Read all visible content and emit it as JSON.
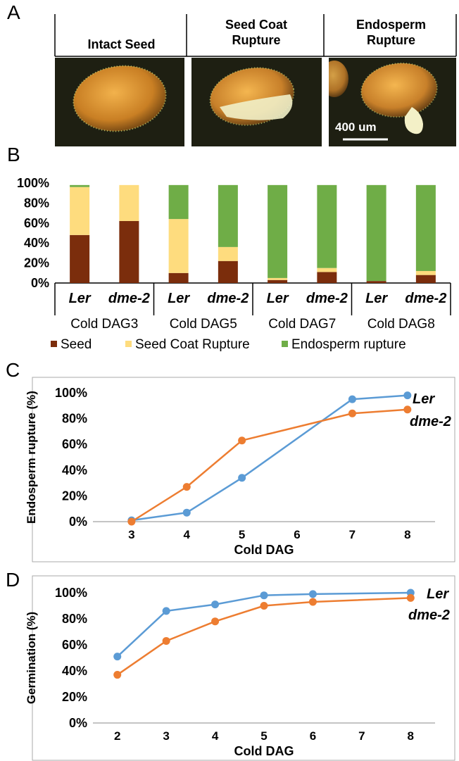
{
  "panels": {
    "a": "A",
    "b": "B",
    "c": "C",
    "d": "D"
  },
  "photos": {
    "labels": [
      [
        "Intact Seed"
      ],
      [
        "Seed Coat",
        "Rupture"
      ],
      [
        "Endosperm",
        "Rupture"
      ]
    ],
    "scale_bar": "400 um"
  },
  "chart_data": [
    {
      "type": "bar",
      "stacked": true,
      "categories": [
        "Ler",
        "dme-2",
        "Ler",
        "dme-2",
        "Ler",
        "dme-2",
        "Ler",
        "dme-2"
      ],
      "groups": [
        "Cold DAG3",
        "Cold DAG5",
        "Cold DAG7",
        "Cold DAG8"
      ],
      "series": [
        {
          "name": "Seed",
          "color": "#7b2d0c",
          "values": [
            48,
            62,
            10,
            22,
            3,
            11,
            2,
            8
          ]
        },
        {
          "name": "Seed Coat Rupture",
          "color": "#fedc7e",
          "values": [
            48,
            36,
            54,
            14,
            2,
            4,
            0,
            4
          ]
        },
        {
          "name": "Endosperm rupture",
          "color": "#6fad47",
          "values": [
            2,
            0,
            34,
            62,
            93,
            83,
            96,
            86
          ]
        }
      ],
      "ylim": [
        0,
        100
      ],
      "yticks": [
        "0%",
        "20%",
        "40%",
        "60%",
        "80%",
        "100%"
      ],
      "legend_position": "bottom"
    },
    {
      "type": "line",
      "ylabel": "Endosperm rupture (%)",
      "xlabel": "Cold DAG",
      "xticks": [
        "3",
        "4",
        "5",
        "6",
        "7",
        "8"
      ],
      "yticks": [
        "0%",
        "20%",
        "40%",
        "60%",
        "80%",
        "100%"
      ],
      "xlim": [
        2.3,
        8.5
      ],
      "ylim": [
        0,
        100
      ],
      "series": [
        {
          "name": "Ler",
          "color": "#5b9bd5",
          "x": [
            3,
            4,
            5,
            7,
            8
          ],
          "y": [
            1,
            7,
            34,
            95,
            98
          ]
        },
        {
          "name": "dme-2",
          "color": "#ed7d31",
          "x": [
            3,
            4,
            5,
            7,
            8
          ],
          "y": [
            0,
            27,
            63,
            84,
            87
          ]
        }
      ]
    },
    {
      "type": "line",
      "ylabel": "Germination (%)",
      "xlabel": "Cold DAG",
      "xticks": [
        "2",
        "3",
        "4",
        "5",
        "6",
        "7",
        "8"
      ],
      "yticks": [
        "0%",
        "20%",
        "40%",
        "60%",
        "80%",
        "100%"
      ],
      "xlim": [
        1.5,
        8.5
      ],
      "ylim": [
        0,
        100
      ],
      "series": [
        {
          "name": "Ler",
          "color": "#5b9bd5",
          "x": [
            2,
            3,
            4,
            5,
            6,
            8
          ],
          "y": [
            51,
            86,
            91,
            98,
            99,
            100
          ]
        },
        {
          "name": "dme-2",
          "color": "#ed7d31",
          "x": [
            2,
            3,
            4,
            5,
            6,
            8
          ],
          "y": [
            37,
            63,
            78,
            90,
            93,
            96
          ]
        }
      ]
    }
  ]
}
